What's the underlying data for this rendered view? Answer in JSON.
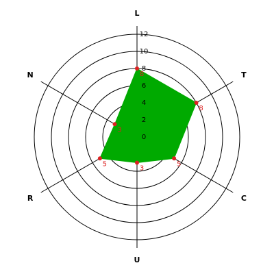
{
  "chart_data": {
    "type": "radar",
    "categories": [
      "L",
      "T",
      "C",
      "U",
      "R",
      "N"
    ],
    "values": [
      8,
      8,
      5,
      3,
      5,
      3
    ],
    "color": "#00aa00",
    "marker_color": "#dd2222",
    "rlim": [
      0,
      12
    ],
    "rticks": [
      0,
      2,
      4,
      6,
      8,
      10,
      12
    ]
  }
}
